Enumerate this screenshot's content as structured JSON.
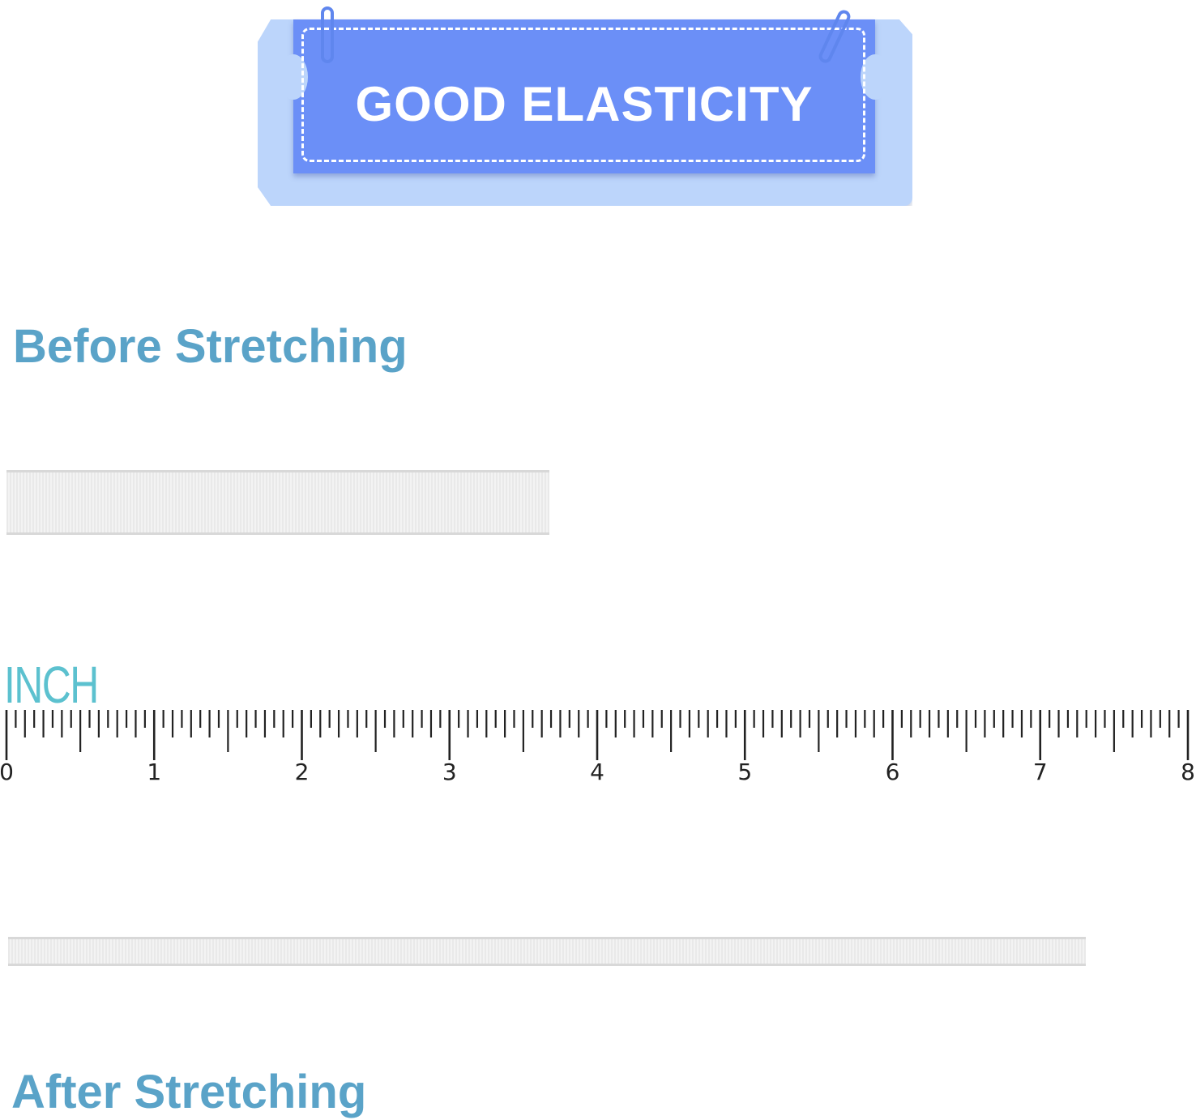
{
  "banner": {
    "title": "GOOD ELASTICITY",
    "colors": {
      "front": "#6b8ff7",
      "back": "#bcd5fb"
    }
  },
  "before": {
    "title": "Before Stretching",
    "band_length_inches": 3.7
  },
  "ruler": {
    "unit_label": "INCH",
    "labels": [
      "0",
      "1",
      "2",
      "3",
      "4",
      "5",
      "6",
      "7",
      "8"
    ],
    "subdivisions_per_inch": 16,
    "range": [
      0,
      8
    ]
  },
  "after": {
    "title": "After Stretching",
    "band_length_inches": 7.3
  },
  "title_color": "#5aa3c8"
}
